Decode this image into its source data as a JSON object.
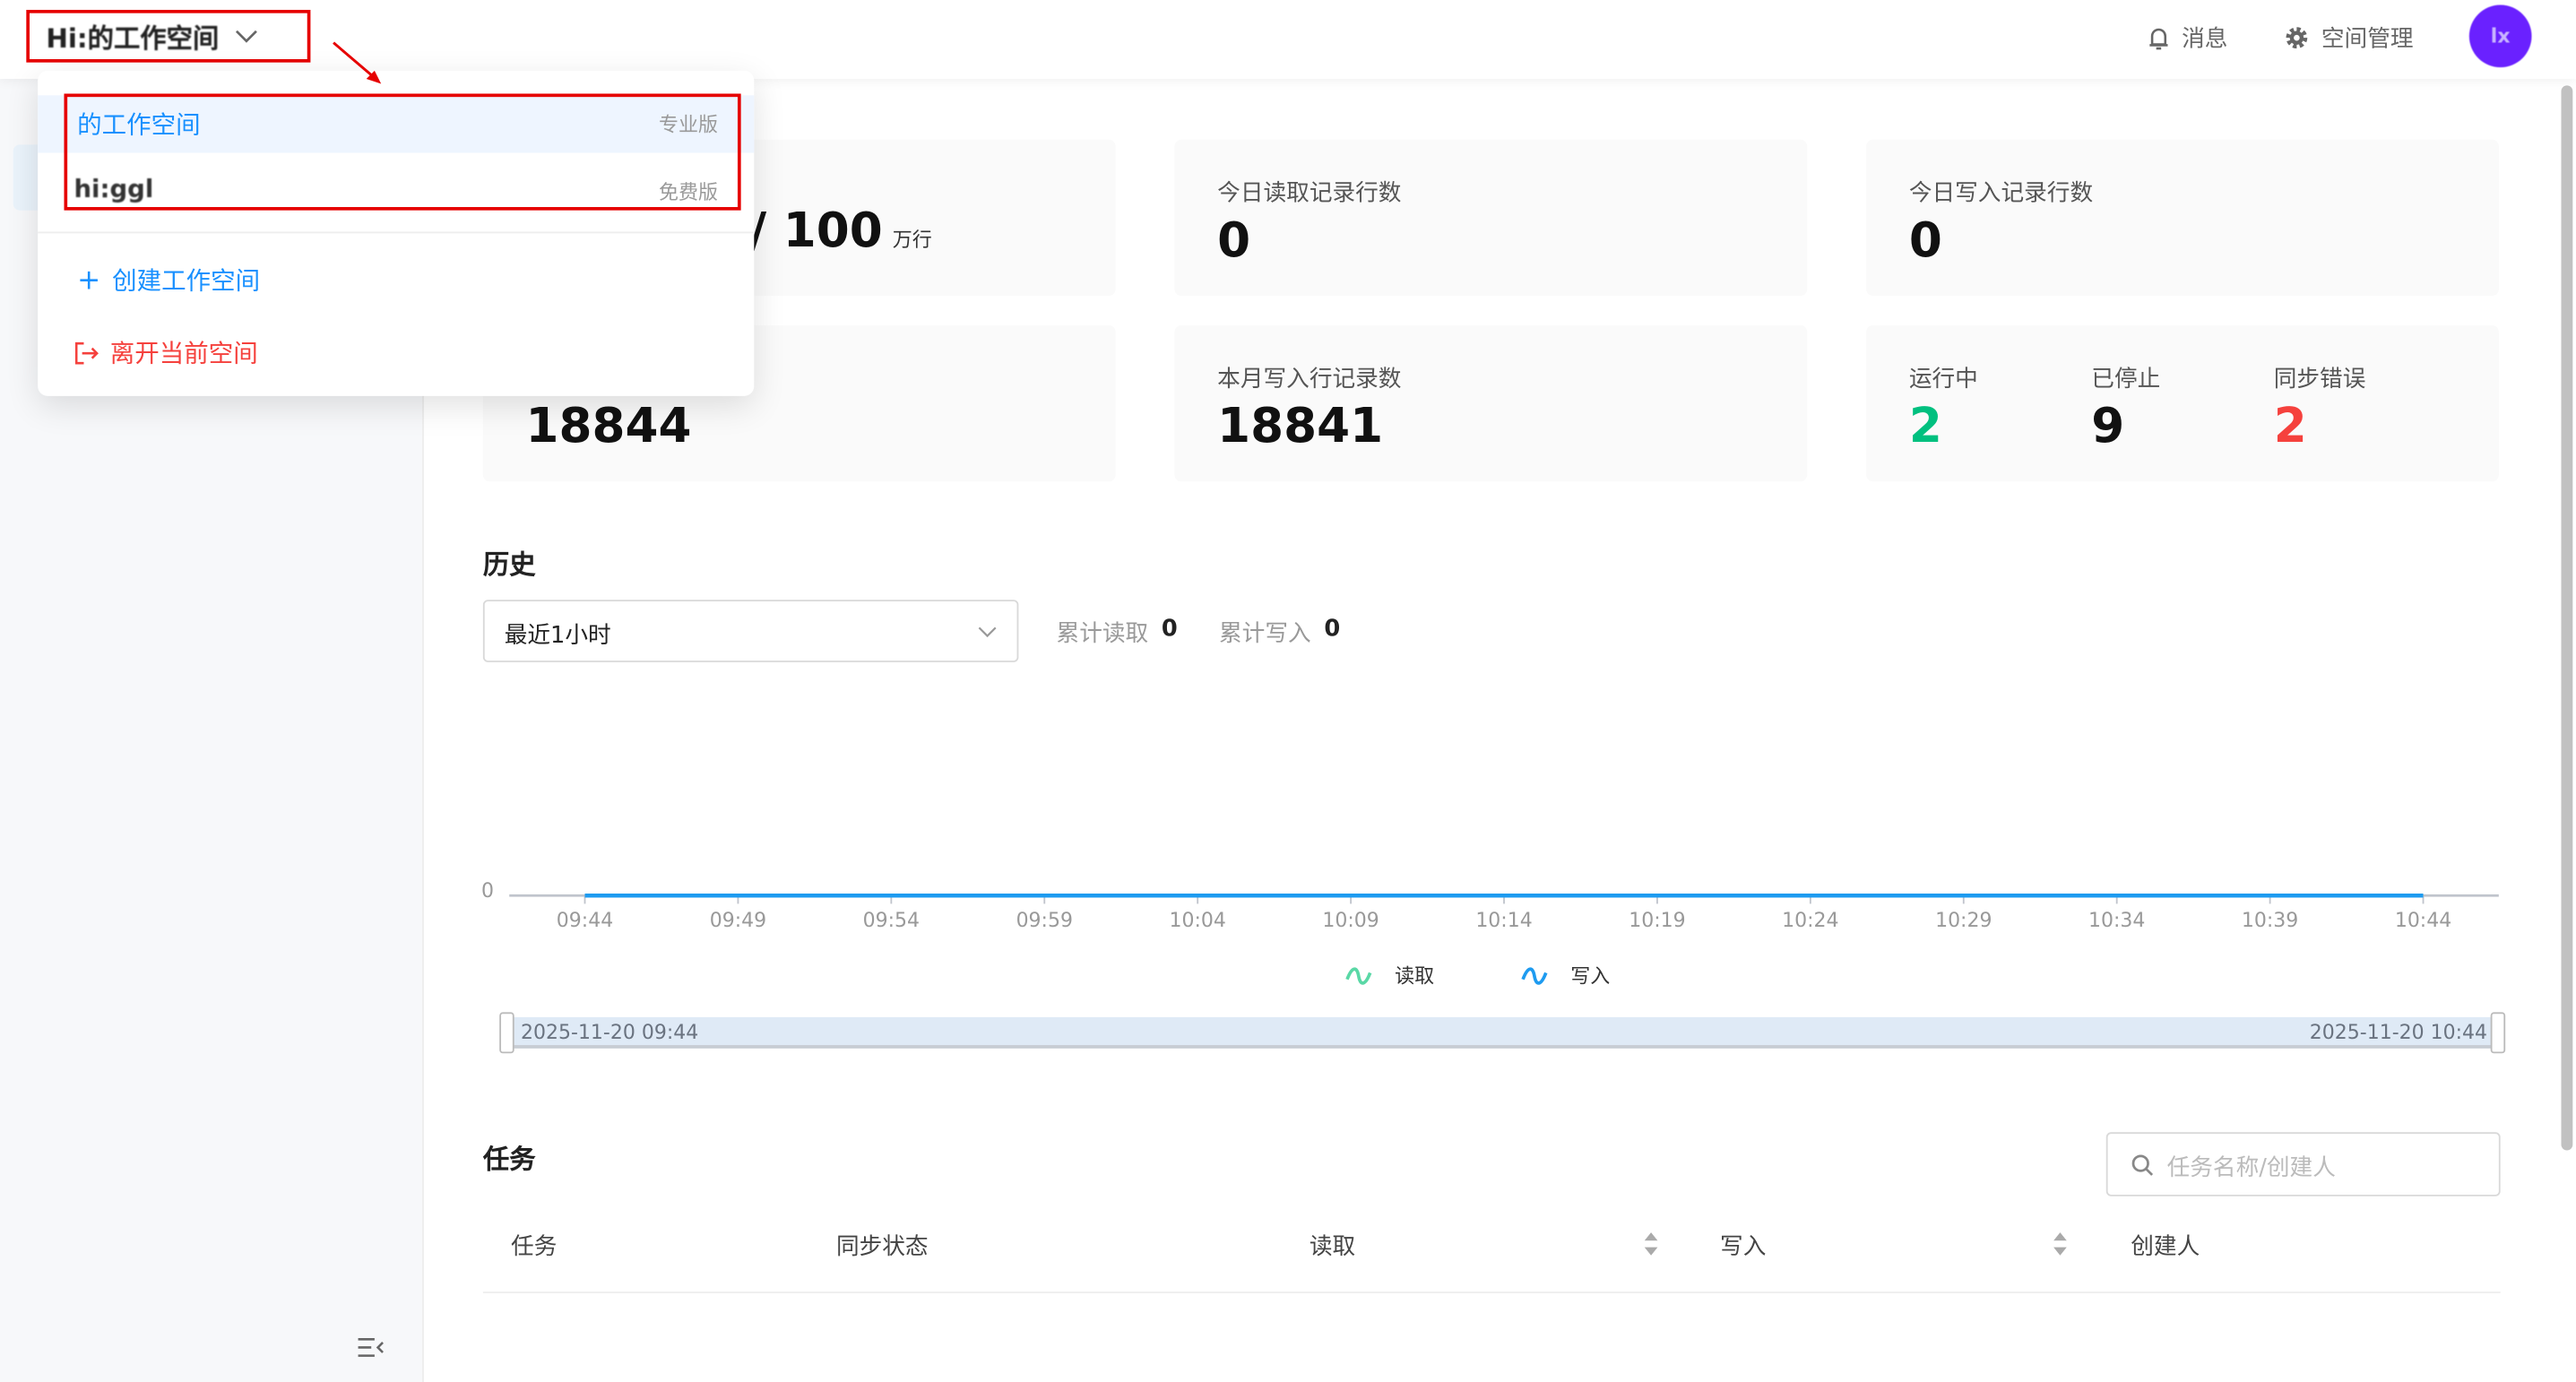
{
  "header": {
    "workspace": "Hi:的工作空间",
    "messages": "消息",
    "space_manage": "空间管理",
    "avatar_text": "lx",
    "colors": {
      "avatar": "#6a21ff",
      "highlight": "#e60000"
    }
  },
  "dropdown": {
    "items": [
      {
        "name": "的工作空间",
        "edition": "专业版",
        "selected": true
      },
      {
        "name": "hi:ggl",
        "edition": "免费版",
        "selected": false
      }
    ],
    "create": "创建工作空间",
    "leave": "离开当前空间"
  },
  "stats": {
    "quota_value": "/ 100",
    "quota_unit": "万行",
    "today_read_label": "今日读取记录行数",
    "today_read": "0",
    "today_write_label": "今日写入记录行数",
    "today_write": "0",
    "month_read": "18844",
    "month_write_label": "本月写入行记录数",
    "month_write": "18841",
    "running_label": "运行中",
    "running": "2",
    "stopped_label": "已停止",
    "stopped": "9",
    "error_label": "同步错误",
    "error": "2",
    "colors": {
      "running": "#00c07f",
      "error": "#f5413d"
    }
  },
  "history": {
    "title": "历史",
    "range": "最近1小时",
    "total_read_label": "累计读取",
    "total_read": "0",
    "total_write_label": "累计写入",
    "total_write": "0",
    "slider_start": "2025-11-20 09:44",
    "slider_end": "2025-11-20 10:44"
  },
  "chart_data": {
    "type": "line",
    "x": [
      "09:44",
      "09:49",
      "09:54",
      "09:59",
      "10:04",
      "10:09",
      "10:14",
      "10:19",
      "10:24",
      "10:29",
      "10:34",
      "10:39",
      "10:44"
    ],
    "y_ticks": [
      "0"
    ],
    "series": [
      {
        "name": "读取",
        "color": "#5ad8a6",
        "values": [
          0,
          0,
          0,
          0,
          0,
          0,
          0,
          0,
          0,
          0,
          0,
          0,
          0
        ]
      },
      {
        "name": "写入",
        "color": "#1e9bf0",
        "values": [
          0,
          0,
          0,
          0,
          0,
          0,
          0,
          0,
          0,
          0,
          0,
          0,
          0
        ]
      }
    ],
    "legend": "bottom"
  },
  "tasks": {
    "title": "任务",
    "search_placeholder": "任务名称/创建人",
    "columns": [
      "任务",
      "同步状态",
      "读取",
      "写入",
      "创建人"
    ]
  }
}
